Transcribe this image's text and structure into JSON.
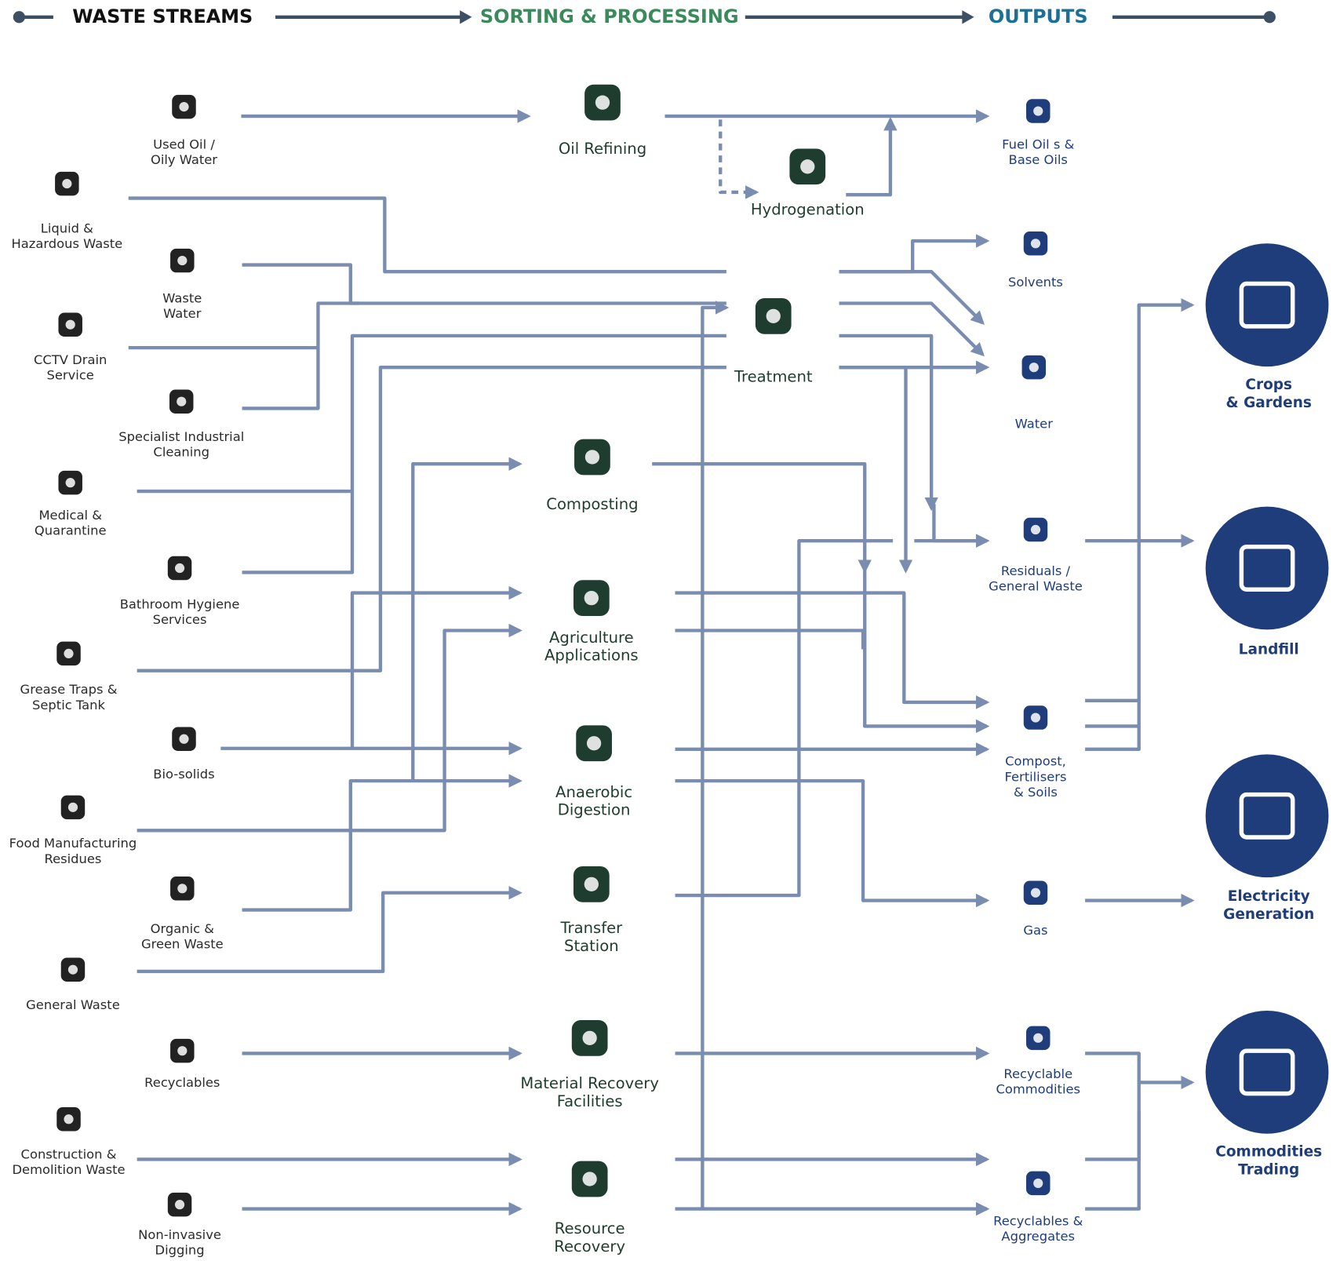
{
  "header": {
    "stages": [
      "WASTE STREAMS",
      "SORTING & PROCESSING",
      "OUTPUTS"
    ]
  },
  "waste_streams": [
    [
      "Used Oil /",
      "Oily Water"
    ],
    [
      "Liquid &",
      "Hazardous Waste"
    ],
    [
      "Waste",
      "Water"
    ],
    [
      "CCTV Drain",
      "Service"
    ],
    [
      "Specialist Industrial",
      "Cleaning"
    ],
    [
      "Medical &",
      "Quarantine"
    ],
    [
      "Bathroom Hygiene",
      "Services"
    ],
    [
      "Grease Traps &",
      "Septic Tank"
    ],
    [
      "Bio-solids"
    ],
    [
      "Food Manufacturing",
      "Residues"
    ],
    [
      "Organic &",
      "Green Waste"
    ],
    [
      "General Waste"
    ],
    [
      "Recyclables"
    ],
    [
      "Construction &",
      "Demolition Waste"
    ],
    [
      "Non-invasive",
      "Digging"
    ]
  ],
  "processes": [
    [
      "Oil Refining"
    ],
    [
      "Hydrogenation"
    ],
    [
      "Treatment"
    ],
    [
      "Composting"
    ],
    [
      "Agriculture",
      "Applications"
    ],
    [
      "Anaerobic",
      "Digestion"
    ],
    [
      "Transfer",
      "Station"
    ],
    [
      "Material Recovery",
      "Facilities"
    ],
    [
      "Resource",
      "Recovery"
    ]
  ],
  "outputs": [
    [
      "Fuel Oil s &",
      "Base Oils"
    ],
    [
      "Solvents"
    ],
    [
      "Water"
    ],
    [
      "Residuals /",
      "General Waste"
    ],
    [
      "Compost,",
      "Fertilisers",
      "& Soils"
    ],
    [
      "Gas"
    ],
    [
      "Recyclable",
      "Commodities"
    ],
    [
      "Recyclables &",
      "Aggregates"
    ]
  ],
  "end_uses": [
    [
      "Crops",
      "& Gardens"
    ],
    [
      "Landfill"
    ],
    [
      "Electricity",
      "Generation"
    ],
    [
      "Commodities",
      "Trading"
    ]
  ]
}
